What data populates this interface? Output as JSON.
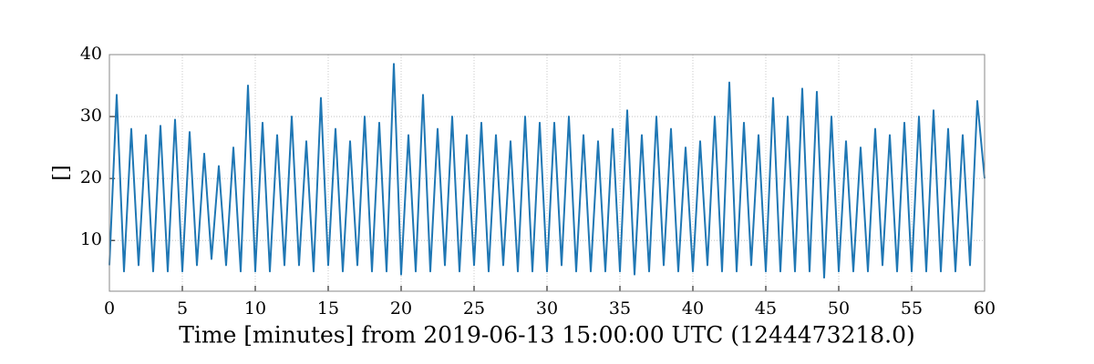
{
  "chart_data": {
    "type": "line",
    "xlabel": "Time [minutes] from 2019-06-13 15:00:00 UTC (1244473218.0)",
    "ylabel": "[]",
    "x": [
      0,
      0.5,
      1,
      1.5,
      2,
      2.5,
      3,
      3.5,
      4,
      4.5,
      5,
      5.5,
      6,
      6.5,
      7,
      7.5,
      8,
      8.5,
      9,
      9.5,
      10,
      10.5,
      11,
      11.5,
      12,
      12.5,
      13,
      13.5,
      14,
      14.5,
      15,
      15.5,
      16,
      16.5,
      17,
      17.5,
      18,
      18.5,
      19,
      19.5,
      20,
      20.5,
      21,
      21.5,
      22,
      22.5,
      23,
      23.5,
      24,
      24.5,
      25,
      25.5,
      26,
      26.5,
      27,
      27.5,
      28,
      28.5,
      29,
      29.5,
      30,
      30.5,
      31,
      31.5,
      32,
      32.5,
      33,
      33.5,
      34,
      34.5,
      35,
      35.5,
      36,
      36.5,
      37,
      37.5,
      38,
      38.5,
      39,
      39.5,
      40,
      40.5,
      41,
      41.5,
      42,
      42.5,
      43,
      43.5,
      44,
      44.5,
      45,
      45.5,
      46,
      46.5,
      47,
      47.5,
      48,
      48.5,
      49,
      49.5,
      50,
      50.5,
      51,
      51.5,
      52,
      52.5,
      53,
      53.5,
      54,
      54.5,
      55,
      55.5,
      56,
      56.5,
      57,
      57.5,
      58,
      58.5,
      59,
      59.5,
      60
    ],
    "series": [
      {
        "color": "#1f77b4",
        "values": [
          6,
          33.5,
          5,
          28,
          6,
          27,
          5,
          28.5,
          5,
          29.5,
          5,
          27.5,
          6,
          24,
          7,
          22,
          6,
          25,
          5,
          35,
          5,
          29,
          5,
          27,
          6,
          30,
          6,
          26,
          5,
          33,
          6,
          28,
          5,
          26,
          6,
          30,
          5,
          29,
          5,
          38.5,
          4.5,
          27,
          5,
          33.5,
          5,
          28,
          6,
          30,
          5,
          27,
          6,
          29,
          5,
          27,
          6,
          26,
          5,
          30,
          5,
          29,
          5,
          29,
          6,
          30,
          5,
          27,
          5,
          26,
          5,
          28,
          5,
          31,
          4.5,
          27,
          5,
          30,
          6,
          28,
          5,
          25,
          5,
          26,
          6,
          30,
          5,
          35.5,
          5,
          29,
          6,
          27,
          5,
          33,
          5,
          30,
          5,
          34.5,
          5,
          34,
          4,
          30,
          5,
          26,
          5,
          25,
          5,
          28,
          6,
          27,
          5,
          29,
          5,
          30,
          5,
          31,
          5,
          28,
          5,
          27,
          6,
          32.5,
          20
        ]
      }
    ],
    "xlim": [
      0,
      60
    ],
    "xticks": [
      0,
      5,
      10,
      15,
      20,
      25,
      30,
      35,
      40,
      45,
      50,
      55,
      60
    ],
    "ylim": [
      1.8,
      40
    ],
    "yticks": [
      10,
      20,
      30,
      40
    ],
    "grid": true
  }
}
